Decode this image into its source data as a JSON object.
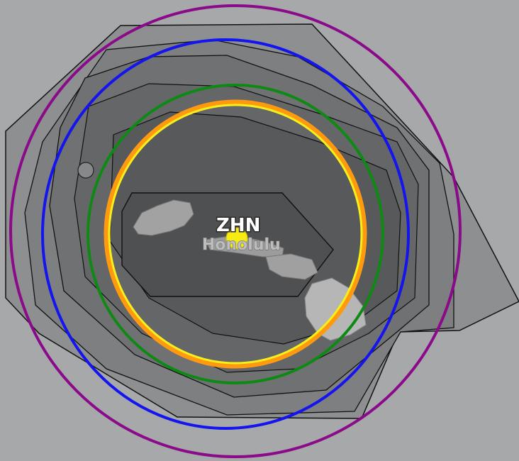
{
  "map": {
    "background_color": "#a6a8aa",
    "station_id": "ZHN",
    "city_label": "Honolulu",
    "station_marker_color": "#f6ec14",
    "range_rings": [
      {
        "name": "purple-ring",
        "color": "#8a0a8a"
      },
      {
        "name": "blue-ring",
        "color": "#1414ee"
      },
      {
        "name": "green-ring",
        "color": "#0e8a14"
      },
      {
        "name": "orange-ring",
        "color": "#ff9a10"
      },
      {
        "name": "yellow-ring",
        "color": "#f6f01a"
      }
    ],
    "coverage_shades": [
      "#8e8f91",
      "#7a7b7d",
      "#6c6d6f",
      "#5f6062",
      "#545557"
    ],
    "island_color": "#a2a2a2"
  }
}
